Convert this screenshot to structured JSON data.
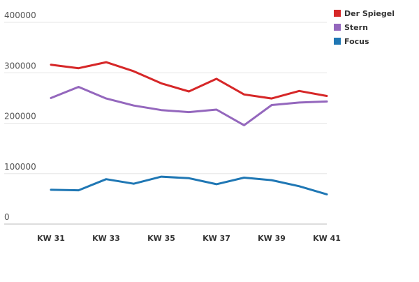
{
  "chart_data": {
    "type": "line",
    "title": "",
    "xlabel": "",
    "ylabel": "",
    "x": [
      "KW 31",
      "KW 32",
      "KW 33",
      "KW 34",
      "KW 35",
      "KW 36",
      "KW 37",
      "KW 38",
      "KW 39",
      "KW 40",
      "KW 41"
    ],
    "x_tick_labels": [
      "KW 31",
      "KW 33",
      "KW 35",
      "KW 37",
      "KW 39",
      "KW 41"
    ],
    "y_ticks": [
      0,
      100000,
      200000,
      300000,
      400000
    ],
    "y_tick_labels": [
      "0",
      "100000",
      "200000",
      "300000",
      "400000"
    ],
    "ylim": [
      0,
      400000
    ],
    "grid": true,
    "legend_position": "top-right",
    "series": [
      {
        "name": "Der Spiegel",
        "color": "#d62728",
        "values": [
          316000,
          309000,
          321000,
          303000,
          279000,
          263000,
          288000,
          257000,
          249000,
          264000,
          254000
        ]
      },
      {
        "name": "Stern",
        "color": "#9467bd",
        "values": [
          250000,
          272000,
          249000,
          235000,
          226000,
          222000,
          227000,
          196000,
          236000,
          241000,
          243000
        ]
      },
      {
        "name": "Focus",
        "color": "#1f77b4",
        "values": [
          68000,
          67000,
          89000,
          80000,
          94000,
          91000,
          79000,
          92000,
          87000,
          75000,
          59000
        ]
      }
    ]
  }
}
